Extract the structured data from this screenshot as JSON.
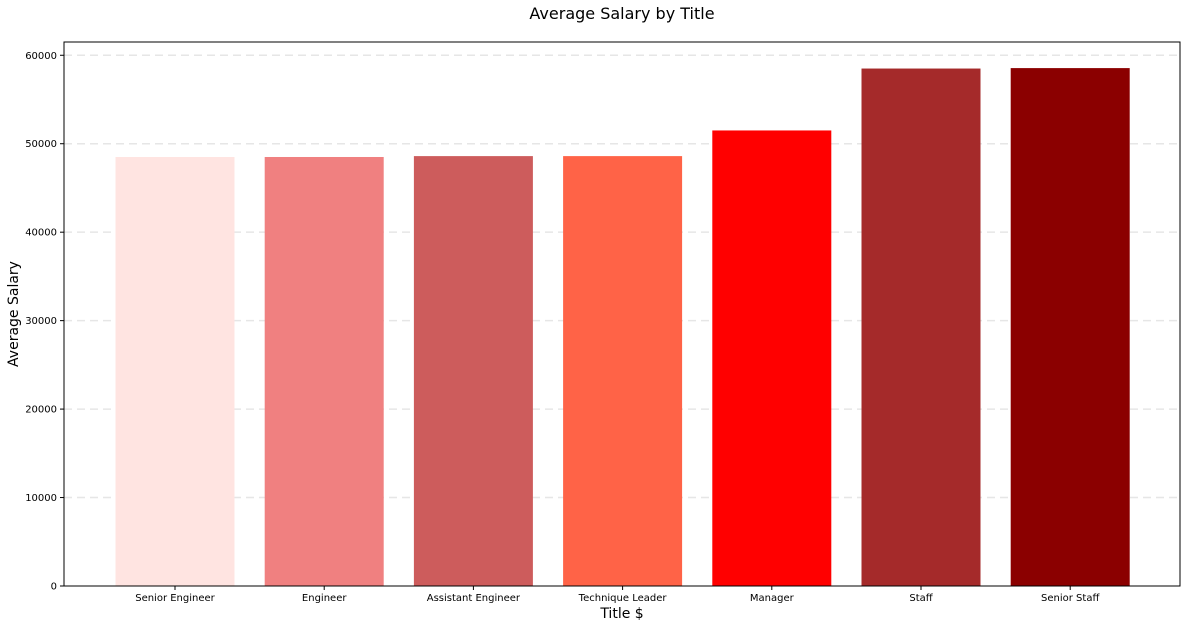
{
  "chart_data": {
    "type": "bar",
    "title": "Average Salary by Title",
    "xlabel": "Title $",
    "ylabel": "Average Salary",
    "categories": [
      "Senior Engineer",
      "Engineer",
      "Assistant Engineer",
      "Technique Leader",
      "Manager",
      "Staff",
      "Senior Staff"
    ],
    "values": [
      48500,
      48500,
      48600,
      48600,
      51500,
      58500,
      58550
    ],
    "colors": [
      "#FFE4E1",
      "#F08080",
      "#CD5C5C",
      "#FF6347",
      "#FF0000",
      "#A52A2A",
      "#8B0000"
    ],
    "ylim": [
      0,
      61500
    ],
    "yticks": [
      0,
      10000,
      20000,
      30000,
      40000,
      50000,
      60000
    ],
    "grid": "horizontal dashed",
    "legend": "none"
  }
}
